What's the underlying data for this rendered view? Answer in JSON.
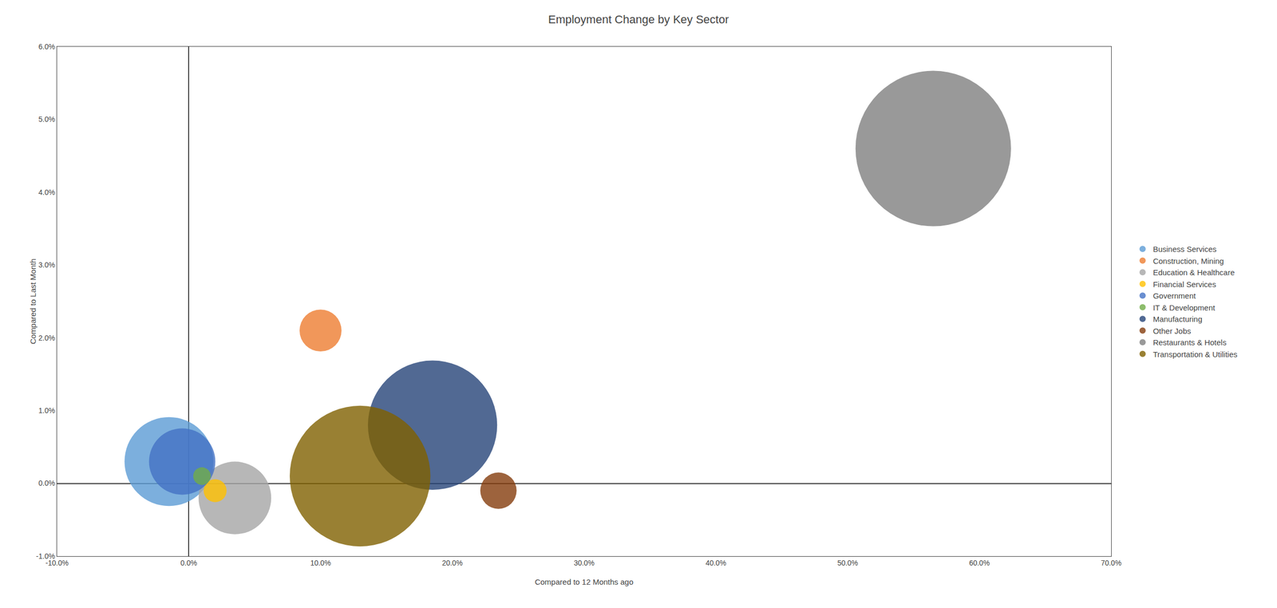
{
  "chart_data": {
    "type": "bubble",
    "title": "Employment Change by Key Sector",
    "xlabel": "Compared to 12 Months ago",
    "ylabel": "Compared to Last Month",
    "xlim": [
      -0.1,
      0.7
    ],
    "ylim": [
      -0.01,
      0.06
    ],
    "xticks": [
      {
        "value": -0.1,
        "label": "-10.0%"
      },
      {
        "value": 0.0,
        "label": "0.0%"
      },
      {
        "value": 0.1,
        "label": "10.0%"
      },
      {
        "value": 0.2,
        "label": "20.0%"
      },
      {
        "value": 0.3,
        "label": "30.0%"
      },
      {
        "value": 0.4,
        "label": "40.0%"
      },
      {
        "value": 0.5,
        "label": "50.0%"
      },
      {
        "value": 0.6,
        "label": "60.0%"
      },
      {
        "value": 0.7,
        "label": "70.0%"
      }
    ],
    "yticks": [
      {
        "value": -0.01,
        "label": "-1.0%"
      },
      {
        "value": 0.0,
        "label": "0.0%"
      },
      {
        "value": 0.01,
        "label": "1.0%"
      },
      {
        "value": 0.02,
        "label": "2.0%"
      },
      {
        "value": 0.03,
        "label": "3.0%"
      },
      {
        "value": 0.04,
        "label": "4.0%"
      },
      {
        "value": 0.05,
        "label": "5.0%"
      },
      {
        "value": 0.06,
        "label": "6.0%"
      }
    ],
    "grid": false,
    "legend": "right",
    "series": [
      {
        "name": "Business Services",
        "x": [
          -0.015
        ],
        "values": [
          0.003
        ],
        "size": [
          18000
        ],
        "color": "#5B9BD5"
      },
      {
        "name": "Construction, Mining",
        "x": [
          0.1
        ],
        "values": [
          0.021
        ],
        "size": [
          4000
        ],
        "color": "#ED7D31"
      },
      {
        "name": "Education & Healthcare",
        "x": [
          0.035
        ],
        "values": [
          -0.002
        ],
        "size": [
          12000
        ],
        "color": "#A5A5A5"
      },
      {
        "name": "Financial Services",
        "x": [
          0.02
        ],
        "values": [
          -0.001
        ],
        "size": [
          1200
        ],
        "color": "#FFC000"
      },
      {
        "name": "Government",
        "x": [
          -0.005
        ],
        "values": [
          0.003
        ],
        "size": [
          10000
        ],
        "color": "#4472C4"
      },
      {
        "name": "IT & Development",
        "x": [
          0.01
        ],
        "values": [
          0.001
        ],
        "size": [
          700
        ],
        "color": "#70AD47"
      },
      {
        "name": "Manufacturing",
        "x": [
          0.185
        ],
        "values": [
          0.008
        ],
        "size": [
          38000
        ],
        "color": "#264478"
      },
      {
        "name": "Other Jobs",
        "x": [
          0.235
        ],
        "values": [
          -0.001
        ],
        "size": [
          3000
        ],
        "color": "#843C0C"
      },
      {
        "name": "Restaurants & Hotels",
        "x": [
          0.565
        ],
        "values": [
          0.046
        ],
        "size": [
          55000
        ],
        "color": "#808080"
      },
      {
        "name": "Transportation & Utilities",
        "x": [
          0.13
        ],
        "values": [
          0.001
        ],
        "size": [
          45000
        ],
        "color": "#7F6000"
      }
    ]
  }
}
